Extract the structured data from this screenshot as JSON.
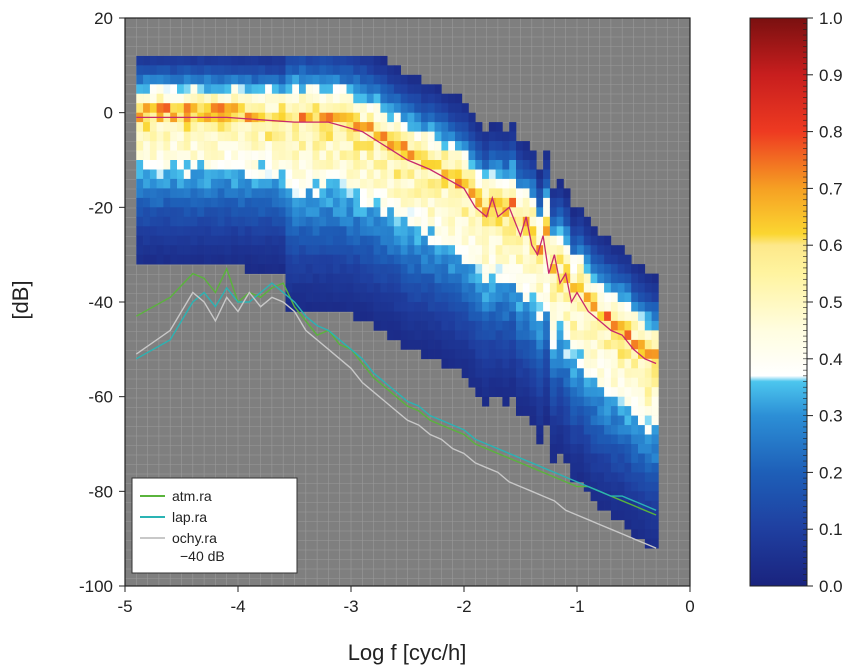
{
  "chart_data": {
    "type": "heatmap",
    "xlabel": "Log f [cyc/h]",
    "ylabel": "[dB]",
    "xlim": [
      -5,
      -0.3
    ],
    "ylim": [
      -100,
      20
    ],
    "x_ticks": [
      "-5",
      "-4",
      "-3",
      "-2",
      "-1",
      "0"
    ],
    "x_tick_values": [
      -5,
      -4,
      -3,
      -2,
      -1,
      0
    ],
    "y_ticks": [
      "20",
      "0",
      "-20",
      "-40",
      "-60",
      "-80",
      "-100"
    ],
    "y_tick_values": [
      20,
      0,
      -20,
      -40,
      -60,
      -80,
      -100
    ],
    "colorbar": {
      "ticks": [
        "1.0",
        "0.9",
        "0.8",
        "0.7",
        "0.6",
        "0.5",
        "0.4",
        "0.3",
        "0.2",
        "0.1",
        "0.0"
      ],
      "tick_values": [
        1.0,
        0.9,
        0.8,
        0.7,
        0.6,
        0.5,
        0.4,
        0.3,
        0.2,
        0.1,
        0.0
      ]
    },
    "background_color": "#7f7f7f",
    "median_line": {
      "color": "#c8286e",
      "x": [
        -4.9,
        -4.5,
        -4.1,
        -3.8,
        -3.5,
        -3.2,
        -2.9,
        -2.7,
        -2.5,
        -2.3,
        -2.15,
        -2.0,
        -1.9,
        -1.8,
        -1.75,
        -1.7,
        -1.6,
        -1.5,
        -1.45,
        -1.4,
        -1.35,
        -1.3,
        -1.25,
        -1.2,
        -1.15,
        -1.1,
        -1.05,
        -1.0,
        -0.9,
        -0.8,
        -0.7,
        -0.6,
        -0.5,
        -0.4,
        -0.3
      ],
      "y": [
        -1,
        -1,
        -1,
        -1.5,
        -2,
        -2,
        -4,
        -7,
        -10,
        -12,
        -14,
        -16,
        -20,
        -22,
        -18,
        -22,
        -20,
        -26,
        -22,
        -28,
        -30,
        -26,
        -34,
        -30,
        -36,
        -34,
        -40,
        -38,
        -42,
        -44,
        -46,
        -47,
        -50,
        -52,
        -53
      ]
    },
    "series": [
      {
        "name": "atm.ra",
        "color": "#5ab43c",
        "x": [
          -4.9,
          -4.6,
          -4.4,
          -4.3,
          -4.2,
          -4.1,
          -4.0,
          -3.9,
          -3.8,
          -3.7,
          -3.6,
          -3.5,
          -3.4,
          -3.3,
          -3.2,
          -3.1,
          -3.0,
          -2.9,
          -2.8,
          -2.7,
          -2.6,
          -2.5,
          -2.4,
          -2.3,
          -2.2,
          -2.1,
          -2.0,
          -1.9,
          -1.8,
          -1.7,
          -1.6,
          -1.5,
          -1.4,
          -1.3,
          -1.2,
          -1.1,
          -1.0,
          -0.9,
          -0.8,
          -0.7,
          -0.6,
          -0.5,
          -0.4,
          -0.3
        ],
        "y": [
          -43,
          -39,
          -34,
          -35,
          -38,
          -33,
          -40,
          -38,
          -39,
          -37,
          -36,
          -41,
          -44,
          -47,
          -46,
          -49,
          -50,
          -53,
          -56,
          -58,
          -60,
          -62,
          -63,
          -65,
          -66,
          -67,
          -68,
          -70,
          -71,
          -72,
          -73,
          -74,
          -75,
          -76,
          -77,
          -78,
          -79,
          -79,
          -80,
          -81,
          -82,
          -83,
          -84,
          -85
        ]
      },
      {
        "name": "lap.ra",
        "color": "#2ab4b4",
        "x": [
          -4.9,
          -4.6,
          -4.4,
          -4.3,
          -4.2,
          -4.1,
          -4.0,
          -3.9,
          -3.8,
          -3.7,
          -3.6,
          -3.5,
          -3.4,
          -3.3,
          -3.2,
          -3.1,
          -3.0,
          -2.9,
          -2.8,
          -2.7,
          -2.6,
          -2.5,
          -2.4,
          -2.3,
          -2.2,
          -2.1,
          -2.0,
          -1.9,
          -1.8,
          -1.7,
          -1.6,
          -1.5,
          -1.4,
          -1.3,
          -1.2,
          -1.1,
          -1.0,
          -0.9,
          -0.8,
          -0.7,
          -0.6,
          -0.5,
          -0.4,
          -0.3
        ],
        "y": [
          -52,
          -48,
          -40,
          -38,
          -41,
          -37,
          -40,
          -40,
          -38,
          -36,
          -38,
          -40,
          -43,
          -45,
          -46,
          -48,
          -50,
          -52,
          -55,
          -57,
          -59,
          -61,
          -62,
          -64,
          -65,
          -66,
          -67,
          -69,
          -70,
          -71,
          -72,
          -73,
          -74,
          -75,
          -76,
          -77,
          -78,
          -79,
          -80,
          -81,
          -81,
          -82,
          -83,
          -84
        ]
      },
      {
        "name": "ochy.ra",
        "color": "#c8c8c8",
        "x": [
          -4.9,
          -4.6,
          -4.4,
          -4.3,
          -4.2,
          -4.1,
          -4.0,
          -3.9,
          -3.8,
          -3.7,
          -3.6,
          -3.5,
          -3.4,
          -3.3,
          -3.2,
          -3.1,
          -3.0,
          -2.9,
          -2.8,
          -2.7,
          -2.6,
          -2.5,
          -2.4,
          -2.3,
          -2.2,
          -2.1,
          -2.0,
          -1.9,
          -1.8,
          -1.7,
          -1.6,
          -1.5,
          -1.4,
          -1.3,
          -1.2,
          -1.1,
          -1.0,
          -0.9,
          -0.8,
          -0.7,
          -0.6,
          -0.5,
          -0.4,
          -0.3
        ],
        "y": [
          -51,
          -46,
          -38,
          -40,
          -44,
          -39,
          -42,
          -38,
          -41,
          -39,
          -40,
          -42,
          -46,
          -48,
          -50,
          -52,
          -54,
          -57,
          -59,
          -61,
          -63,
          -65,
          -66,
          -68,
          -69,
          -71,
          -72,
          -74,
          -75,
          -76,
          -78,
          -79,
          -80,
          -81,
          -82,
          -84,
          -85,
          -86,
          -87,
          -88,
          -89,
          -90,
          -91,
          -92
        ]
      }
    ],
    "legend": {
      "placement": "bottom-left",
      "items": [
        {
          "label": "atm.ra",
          "color": "#5ab43c"
        },
        {
          "label": "lap.ra",
          "color": "#2ab4b4"
        },
        {
          "label": "ochy.ra",
          "color": "#c8c8c8"
        }
      ],
      "note": "−40 dB"
    }
  }
}
